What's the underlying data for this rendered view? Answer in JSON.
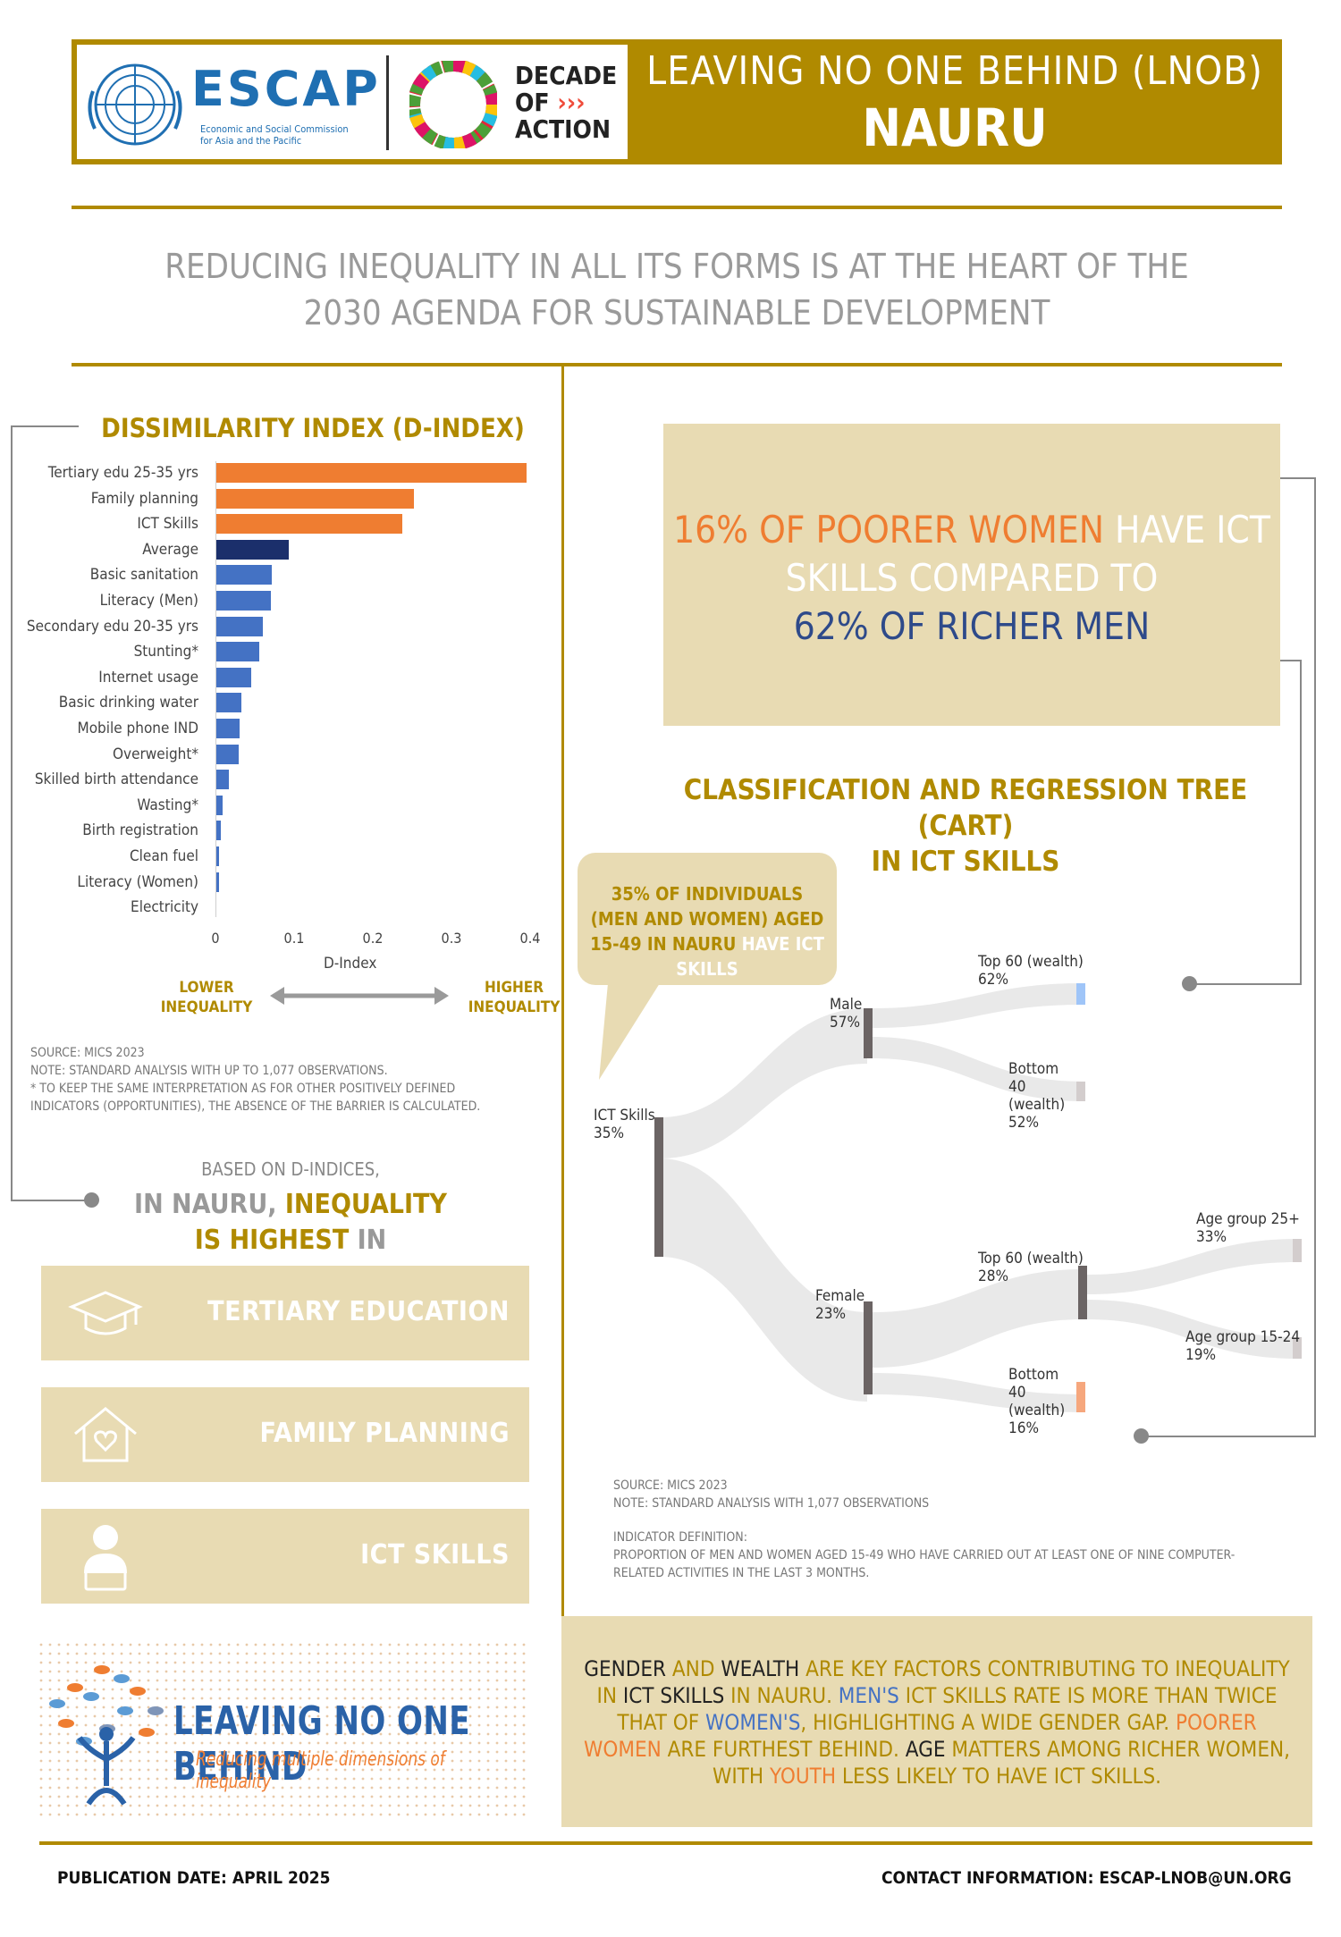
{
  "header": {
    "org_name": "ESCAP",
    "org_full": [
      "Economic and Social Commission",
      "for Asia and the Pacific"
    ],
    "decade": [
      "DECADE",
      "OF",
      "ACTION"
    ],
    "title_line1": "LEAVING NO ONE BEHIND (LNOB)",
    "title_line2": "NAURU"
  },
  "tagline": {
    "line1": "REDUCING INEQUALITY IN ALL ITS FORMS IS AT THE HEART OF THE",
    "line2": "2030 AGENDA FOR SUSTAINABLE DEVELOPMENT"
  },
  "chart_data": {
    "type": "bar",
    "orientation": "horizontal",
    "title": "DISSIMILARITY INDEX (D-INDEX)",
    "xlabel": "D-Index",
    "xlim": [
      0,
      0.4
    ],
    "xticks": [
      "0",
      "0.1",
      "0.2",
      "0.3",
      "0.4"
    ],
    "categories": [
      "Tertiary edu 25-35 yrs",
      "Family planning",
      "ICT Skills",
      "Average",
      "Basic sanitation",
      "Literacy (Men)",
      "Secondary edu 20-35 yrs",
      "Stunting*",
      "Internet usage",
      "Basic drinking water",
      "Mobile phone IND",
      "Overweight*",
      "Skilled birth attendance",
      "Wasting*",
      "Birth registration",
      "Clean fuel",
      "Literacy (Women)",
      "Electricity"
    ],
    "values": [
      0.395,
      0.252,
      0.238,
      0.093,
      0.072,
      0.071,
      0.06,
      0.056,
      0.046,
      0.033,
      0.031,
      0.029,
      0.017,
      0.009,
      0.007,
      0.005,
      0.004,
      0.0
    ],
    "colors": [
      "#ef7d31",
      "#ef7d31",
      "#ef7d31",
      "#1b2f6b",
      "#4472c4",
      "#4472c4",
      "#4472c4",
      "#4472c4",
      "#4472c4",
      "#4472c4",
      "#4472c4",
      "#4472c4",
      "#4472c4",
      "#4472c4",
      "#4472c4",
      "#4472c4",
      "#4472c4",
      "#4472c4"
    ],
    "grid": false
  },
  "inequality_scale": {
    "lower": [
      "LOWER",
      "INEQUALITY"
    ],
    "higher": [
      "HIGHER",
      "INEQUALITY"
    ]
  },
  "chart_notes": {
    "source": "SOURCE: MICS 2023",
    "note": "NOTE: STANDARD ANALYSIS WITH UP TO 1,077 OBSERVATIONS.",
    "footnote1": "* TO KEEP THE SAME INTERPRETATION AS FOR OTHER POSITIVELY DEFINED",
    "footnote2": "INDICATORS (OPPORTUNITIES), THE ABSENCE OF THE BARRIER IS CALCULATED."
  },
  "highest": {
    "intro": "BASED ON D-INDICES,",
    "line2_a": "IN NAURU, ",
    "line2_b": "INEQUALITY",
    "line3_a": "IS HIGHEST",
    "line3_b": " IN",
    "items": [
      "TERTIARY EDUCATION",
      "FAMILY PLANNING",
      "ICT SKILLS"
    ]
  },
  "callout": {
    "part1": "16% OF POORER WOMEN",
    "part2": " HAVE ICT SKILLS COMPARED TO",
    "part3": "62% OF RICHER MEN"
  },
  "cart": {
    "title_line1": "CLASSIFICATION AND REGRESSION TREE (CART)",
    "title_line2": "IN ICT SKILLS",
    "speech_a": "35% OF INDIVIDUALS (MEN AND WOMEN) AGED 15-49 IN NAURU",
    "speech_b": " HAVE ICT SKILLS",
    "nodes": {
      "root": {
        "name": "ICT Skills",
        "value": "35%"
      },
      "male": {
        "name": "Male",
        "value": "57%"
      },
      "male_top": {
        "name": "Top 60 (wealth)",
        "value": "62%"
      },
      "male_bottom": {
        "name": "Bottom 40 (wealth)",
        "value": "52%"
      },
      "female": {
        "name": "Female",
        "value": "23%"
      },
      "female_top": {
        "name": "Top 60 (wealth)",
        "value": "28%"
      },
      "female_bottom": {
        "name": "Bottom 40 (wealth)",
        "value": "16%"
      },
      "age_25": {
        "name": "Age group 25+",
        "value": "33%"
      },
      "age_15": {
        "name": "Age group 15-24",
        "value": "19%"
      }
    },
    "source": "SOURCE: MICS 2023",
    "note": "NOTE: STANDARD ANALYSIS WITH  1,077 OBSERVATIONS",
    "def_title": "INDICATOR DEFINITION:",
    "def_text1": "PROPORTION OF MEN AND WOMEN AGED 15-49 WHO HAVE CARRIED OUT AT LEAST ONE OF NINE COMPUTER-",
    "def_text2": "RELATED ACTIVITIES IN THE LAST 3 MONTHS."
  },
  "summary": {
    "s1": "GENDER",
    "s2": " AND ",
    "s3": "WEALTH",
    "s4": " ARE KEY FACTORS CONTRIBUTING TO INEQUALITY IN ",
    "s5": "ICT SKILLS",
    "s6": " IN NAURU. ",
    "s7": "MEN'S",
    "s8": " ICT SKILLS RATE IS MORE THAN TWICE THAT OF ",
    "s9": "WOMEN'S",
    "s10": ", HIGHLIGHTING A WIDE GENDER GAP. ",
    "s11": "POORER WOMEN",
    "s12": " ARE FURTHEST BEHIND. ",
    "s13": "AGE",
    "s14": " MATTERS AMONG RICHER WOMEN, WITH ",
    "s15": "YOUTH",
    "s16": " LESS LIKELY TO HAVE ICT SKILLS."
  },
  "lnob": {
    "title": "LEAVING NO ONE BEHIND",
    "subtitle": "Reducing multiple dimensions of inequality"
  },
  "footer": {
    "publication": "PUBLICATION DATE: APRIL 2025",
    "contact": "CONTACT INFORMATION: ESCAP-LNOB@UN.ORG"
  }
}
